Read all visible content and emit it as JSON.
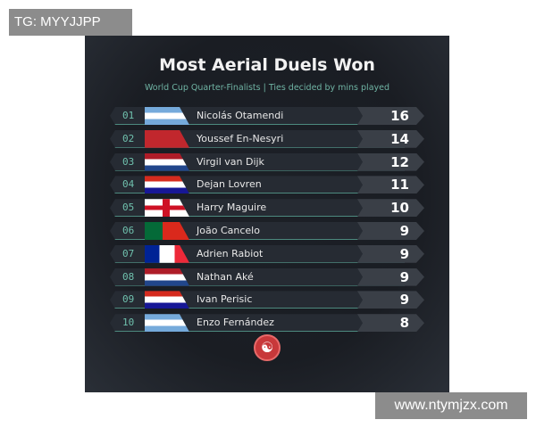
{
  "watermark_top": "TG: MYYJJPP",
  "watermark_bottom": "www.ntymjzx.com",
  "title": "Most Aerial Duels Won",
  "subtitle": "World Cup Quarter-Finalists | Ties decided by mins played",
  "rows": [
    {
      "rank": "01",
      "flag": "argentina",
      "name": "Nicolás Otamendi",
      "value": "16"
    },
    {
      "rank": "02",
      "flag": "morocco",
      "name": "Youssef En-Nesyri",
      "value": "14"
    },
    {
      "rank": "03",
      "flag": "netherlands",
      "name": "Virgil van Dijk",
      "value": "12"
    },
    {
      "rank": "04",
      "flag": "croatia",
      "name": "Dejan Lovren",
      "value": "11"
    },
    {
      "rank": "05",
      "flag": "england",
      "name": "Harry Maguire",
      "value": "10"
    },
    {
      "rank": "06",
      "flag": "portugal",
      "name": "João Cancelo",
      "value": "9"
    },
    {
      "rank": "07",
      "flag": "france",
      "name": "Adrien Rabiot",
      "value": "9"
    },
    {
      "rank": "08",
      "flag": "netherlands",
      "name": "Nathan Aké",
      "value": "9"
    },
    {
      "rank": "09",
      "flag": "croatia",
      "name": "Ivan Perisic",
      "value": "9"
    },
    {
      "rank": "10",
      "flag": "argentina",
      "name": "Enzo Fernández",
      "value": "8"
    }
  ],
  "logo": "brand-logo"
}
